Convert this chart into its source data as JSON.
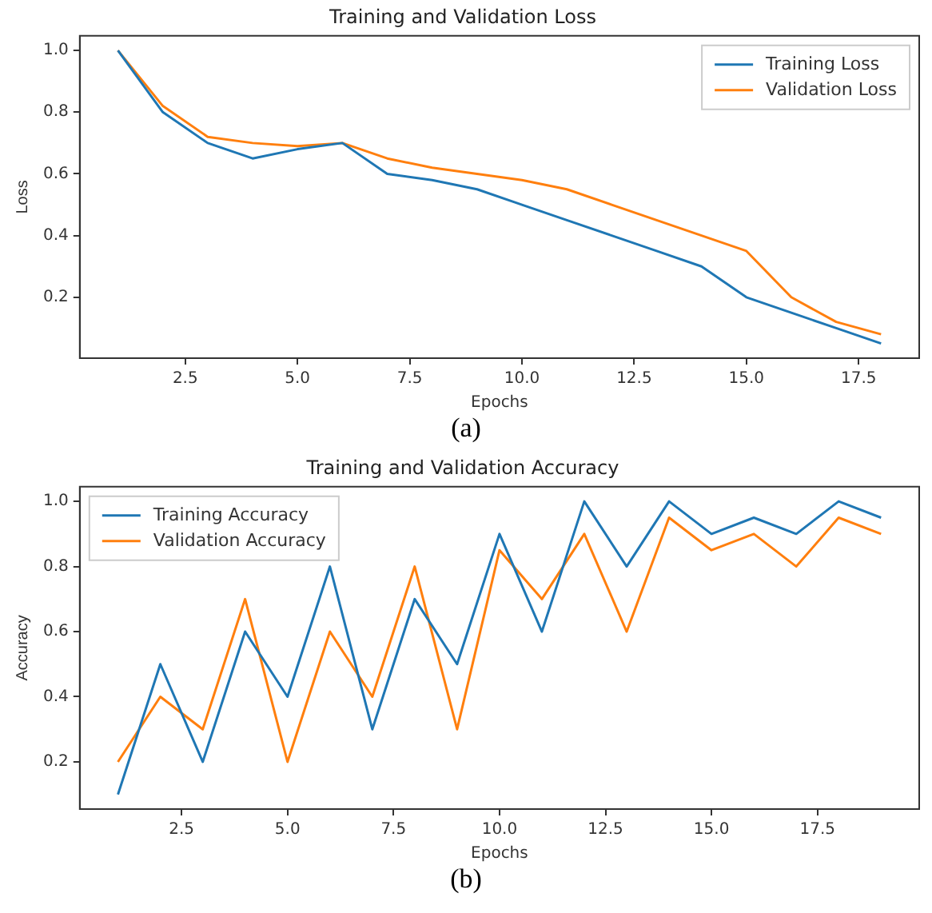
{
  "chart_data": [
    {
      "type": "line",
      "title": "Training and Validation Loss",
      "xlabel": "Epochs",
      "ylabel": "Loss",
      "x": [
        1,
        2,
        3,
        4,
        5,
        6,
        7,
        8,
        9,
        10,
        11,
        12,
        13,
        14,
        15,
        16,
        17,
        18
      ],
      "series": [
        {
          "name": "Training Loss",
          "color": "#1f77b4",
          "values": [
            1.0,
            0.8,
            0.7,
            0.65,
            0.68,
            0.7,
            0.6,
            0.58,
            0.55,
            0.5,
            0.45,
            0.4,
            0.35,
            0.3,
            0.2,
            0.15,
            0.1,
            0.05
          ]
        },
        {
          "name": "Validation Loss",
          "color": "#ff7f0e",
          "values": [
            1.0,
            0.82,
            0.72,
            0.7,
            0.69,
            0.7,
            0.65,
            0.62,
            0.6,
            0.58,
            0.55,
            0.5,
            0.45,
            0.4,
            0.35,
            0.2,
            0.12,
            0.08
          ]
        }
      ],
      "xlim": [
        0.15,
        18.85
      ],
      "xticks": [
        2.5,
        {
          "value": 5,
          "label": "5.0"
        },
        7.5,
        {
          "value": 10,
          "label": "10.0"
        },
        12.5,
        {
          "value": 15,
          "label": "15.0"
        },
        17.5
      ],
      "ylim": [
        0.0025,
        1.0475
      ],
      "yticks": [
        0.2,
        0.4,
        0.6,
        0.8,
        {
          "value": 1,
          "label": "1.0"
        }
      ],
      "grid": false,
      "legend": "top right",
      "marker": "none",
      "line_style": "solid",
      "annotations": [
        "(a)"
      ]
    },
    {
      "type": "line",
      "title": "Training and Validation Accuracy",
      "xlabel": "Epochs",
      "ylabel": "Accuracy",
      "x": [
        1,
        2,
        3,
        4,
        5,
        6,
        7,
        8,
        9,
        10,
        11,
        12,
        13,
        14,
        15,
        16,
        17,
        18,
        19
      ],
      "series": [
        {
          "name": "Training Accuracy",
          "color": "#1f77b4",
          "values": [
            0.1,
            0.5,
            0.2,
            0.6,
            0.4,
            0.8,
            0.3,
            0.7,
            0.5,
            0.9,
            0.6,
            1.0,
            0.8,
            1.0,
            0.9,
            0.95,
            0.9,
            1.0,
            0.95
          ]
        },
        {
          "name": "Validation Accuracy",
          "color": "#ff7f0e",
          "values": [
            0.2,
            0.4,
            0.3,
            0.7,
            0.2,
            0.6,
            0.4,
            0.8,
            0.3,
            0.85,
            0.7,
            0.9,
            0.6,
            0.95,
            0.85,
            0.9,
            0.8,
            0.95,
            0.9
          ]
        }
      ],
      "xlim": [
        0.1,
        19.9
      ],
      "xticks": [
        2.5,
        {
          "value": 5,
          "label": "5.0"
        },
        7.5,
        {
          "value": 10,
          "label": "10.0"
        },
        12.5,
        {
          "value": 15,
          "label": "15.0"
        },
        17.5
      ],
      "ylim": [
        0.055,
        1.045
      ],
      "yticks": [
        0.2,
        0.4,
        0.6,
        0.8,
        {
          "value": 1,
          "label": "1.0"
        }
      ],
      "grid": false,
      "legend": "top left",
      "marker": "none",
      "line_style": "solid",
      "annotations": [
        "(b)"
      ]
    }
  ]
}
